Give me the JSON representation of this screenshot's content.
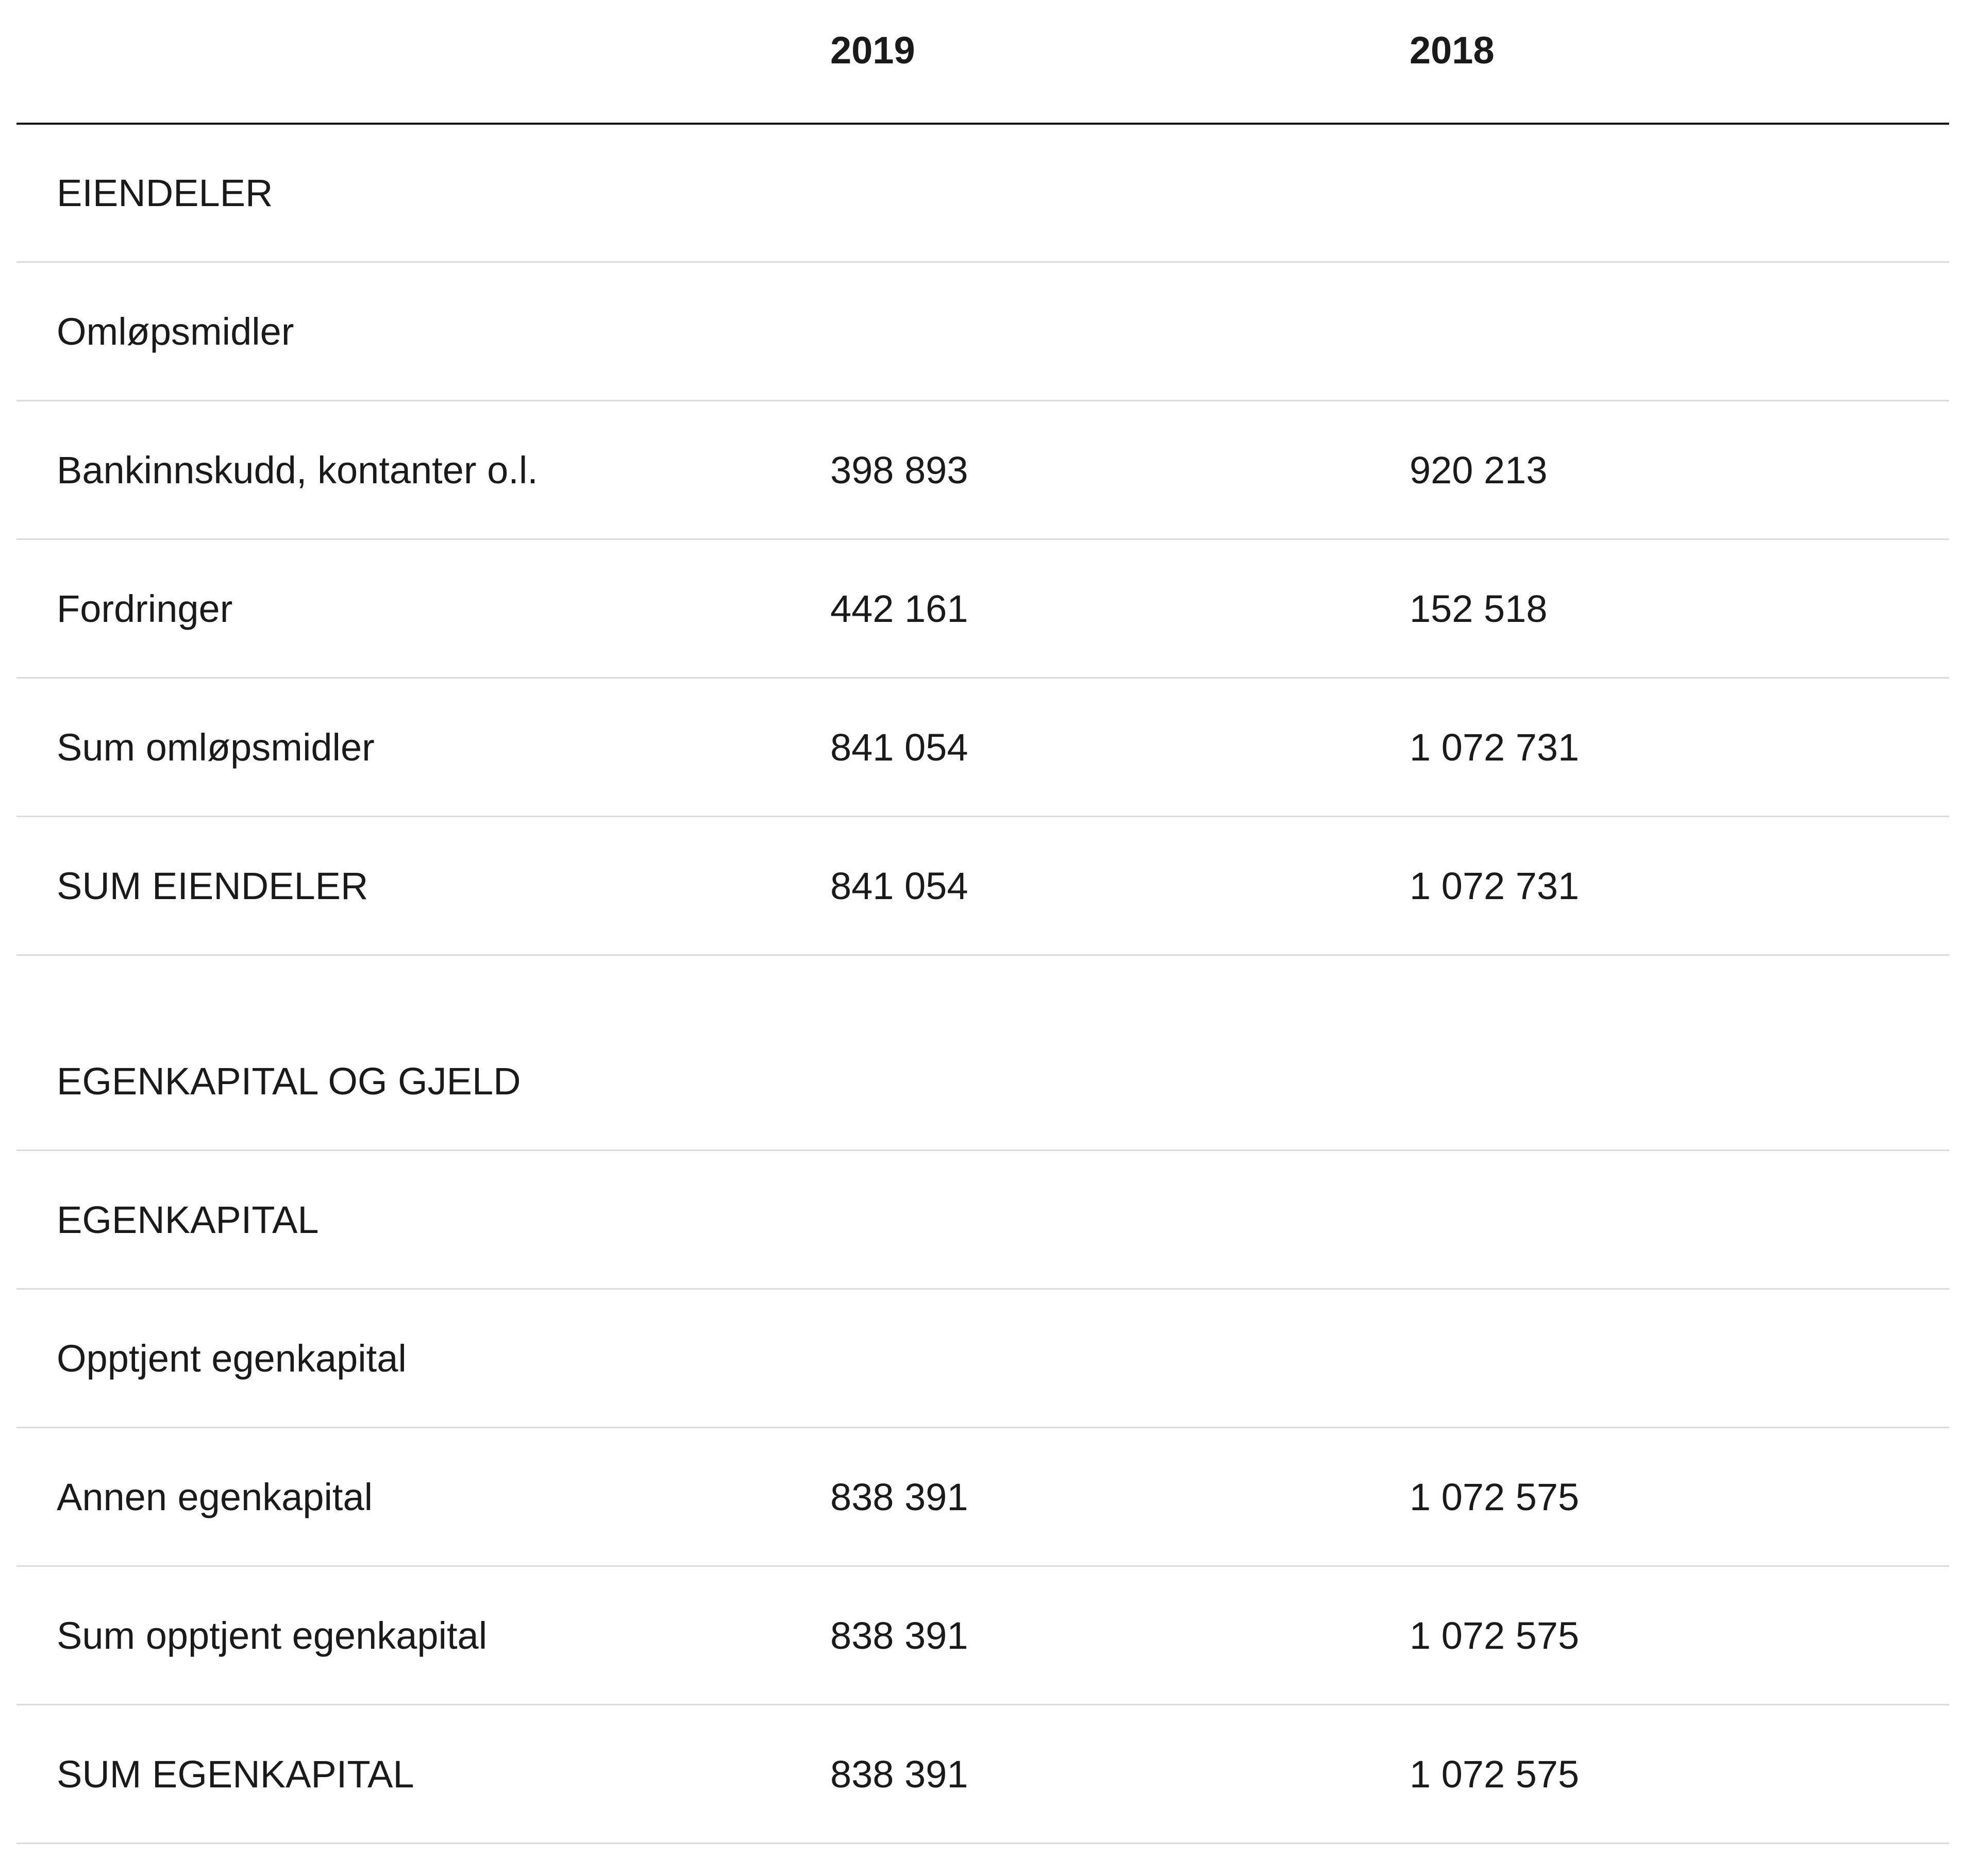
{
  "table": {
    "columns": [
      "2019",
      "2018"
    ],
    "sections": [
      {
        "rows": [
          {
            "label": "EIENDELER"
          },
          {
            "label": "Omløpsmidler"
          },
          {
            "label": "Bankinnskudd, kontanter o.l.",
            "values": [
              "398 893",
              "920 213"
            ]
          },
          {
            "label": "Fordringer",
            "values": [
              "442 161",
              "152 518"
            ]
          },
          {
            "label": "Sum omløpsmidler",
            "values": [
              "841 054",
              "1 072 731"
            ]
          },
          {
            "label": "SUM EIENDELER",
            "values": [
              "841 054",
              "1 072 731"
            ]
          }
        ]
      },
      {
        "rows": [
          {
            "label": "EGENKAPITAL OG GJELD"
          },
          {
            "label": "EGENKAPITAL"
          },
          {
            "label": "Opptjent egenkapital"
          },
          {
            "label": "Annen egenkapital",
            "values": [
              "838 391",
              "1 072 575"
            ]
          },
          {
            "label": "Sum opptjent egenkapital",
            "values": [
              "838 391",
              "1 072 575"
            ]
          },
          {
            "label": "SUM EGENKAPITAL",
            "values": [
              "838 391",
              "1 072 575"
            ]
          }
        ]
      }
    ]
  }
}
